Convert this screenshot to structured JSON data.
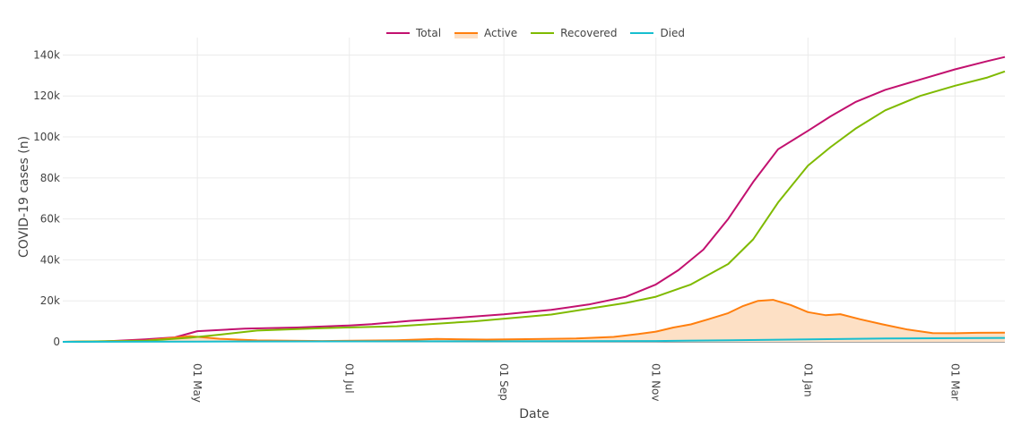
{
  "chart_data": {
    "type": "line",
    "xlabel": "Date",
    "ylabel": "COVID-19 cases (n)",
    "x_range": [
      "2020-03-08",
      "2021-03-21"
    ],
    "ylim": [
      0,
      145000
    ],
    "y_ticks": [
      0,
      20000,
      40000,
      60000,
      80000,
      100000,
      120000,
      140000
    ],
    "y_tick_labels": [
      "0",
      "20k",
      "40k",
      "60k",
      "80k",
      "100k",
      "120k",
      "140k"
    ],
    "x_ticks": [
      "2020-05-01",
      "2020-07-01",
      "2020-09-01",
      "2020-11-01",
      "2021-01-01",
      "2021-03-01"
    ],
    "x_tick_labels": [
      "01 May",
      "01 Jul",
      "01 Sep",
      "01 Nov",
      "01 Jan",
      "01 Mar"
    ],
    "grid": true,
    "legend_position": "top-center",
    "series": [
      {
        "name": "Total",
        "color": "#c2116f",
        "fill": false,
        "points": [
          [
            "2020-03-08",
            0
          ],
          [
            "2020-03-25",
            200
          ],
          [
            "2020-04-10",
            1200
          ],
          [
            "2020-04-22",
            2200
          ],
          [
            "2020-05-01",
            5200
          ],
          [
            "2020-05-20",
            6400
          ],
          [
            "2020-06-10",
            7000
          ],
          [
            "2020-07-01",
            8000
          ],
          [
            "2020-07-10",
            8600
          ],
          [
            "2020-07-25",
            10200
          ],
          [
            "2020-08-10",
            11500
          ],
          [
            "2020-09-01",
            13400
          ],
          [
            "2020-09-20",
            15600
          ],
          [
            "2020-10-05",
            18200
          ],
          [
            "2020-10-20",
            22000
          ],
          [
            "2020-11-01",
            28000
          ],
          [
            "2020-11-10",
            35000
          ],
          [
            "2020-11-20",
            45000
          ],
          [
            "2020-11-30",
            60000
          ],
          [
            "2020-12-10",
            78000
          ],
          [
            "2020-12-20",
            94000
          ],
          [
            "2021-01-01",
            103000
          ],
          [
            "2021-01-10",
            110000
          ],
          [
            "2021-01-20",
            117000
          ],
          [
            "2021-02-01",
            123000
          ],
          [
            "2021-02-15",
            128000
          ],
          [
            "2021-03-01",
            133000
          ],
          [
            "2021-03-14",
            137000
          ],
          [
            "2021-03-21",
            139000
          ]
        ]
      },
      {
        "name": "Active",
        "color": "#ff7f0e",
        "fill": true,
        "fill_color": "#fde0c5",
        "points": [
          [
            "2020-03-08",
            0
          ],
          [
            "2020-04-10",
            600
          ],
          [
            "2020-04-28",
            2800
          ],
          [
            "2020-05-10",
            1500
          ],
          [
            "2020-05-25",
            700
          ],
          [
            "2020-06-20",
            400
          ],
          [
            "2020-07-20",
            800
          ],
          [
            "2020-08-05",
            1400
          ],
          [
            "2020-08-25",
            1100
          ],
          [
            "2020-09-10",
            1300
          ],
          [
            "2020-09-30",
            1600
          ],
          [
            "2020-10-15",
            2400
          ],
          [
            "2020-10-25",
            3800
          ],
          [
            "2020-11-01",
            5000
          ],
          [
            "2020-11-08",
            7000
          ],
          [
            "2020-11-15",
            8500
          ],
          [
            "2020-11-22",
            11000
          ],
          [
            "2020-11-30",
            14000
          ],
          [
            "2020-12-06",
            17500
          ],
          [
            "2020-12-12",
            20000
          ],
          [
            "2020-12-18",
            20500
          ],
          [
            "2020-12-25",
            18000
          ],
          [
            "2021-01-01",
            14500
          ],
          [
            "2021-01-08",
            13000
          ],
          [
            "2021-01-14",
            13500
          ],
          [
            "2021-01-22",
            11000
          ],
          [
            "2021-01-31",
            8500
          ],
          [
            "2021-02-10",
            6000
          ],
          [
            "2021-02-20",
            4300
          ],
          [
            "2021-03-01",
            4200
          ],
          [
            "2021-03-10",
            4400
          ],
          [
            "2021-03-21",
            4500
          ]
        ]
      },
      {
        "name": "Recovered",
        "color": "#7fba00",
        "fill": false,
        "points": [
          [
            "2020-03-08",
            0
          ],
          [
            "2020-04-10",
            500
          ],
          [
            "2020-04-28",
            2000
          ],
          [
            "2020-05-10",
            3500
          ],
          [
            "2020-05-25",
            5500
          ],
          [
            "2020-06-20",
            6700
          ],
          [
            "2020-07-20",
            7600
          ],
          [
            "2020-08-20",
            10000
          ],
          [
            "2020-09-20",
            13300
          ],
          [
            "2020-10-20",
            19000
          ],
          [
            "2020-11-01",
            22000
          ],
          [
            "2020-11-15",
            28000
          ],
          [
            "2020-11-30",
            38000
          ],
          [
            "2020-12-10",
            50000
          ],
          [
            "2020-12-20",
            68000
          ],
          [
            "2021-01-01",
            86000
          ],
          [
            "2021-01-10",
            95000
          ],
          [
            "2021-01-20",
            104000
          ],
          [
            "2021-02-01",
            113000
          ],
          [
            "2021-02-15",
            120000
          ],
          [
            "2021-03-01",
            125000
          ],
          [
            "2021-03-14",
            129000
          ],
          [
            "2021-03-21",
            132000
          ]
        ]
      },
      {
        "name": "Died",
        "color": "#17becf",
        "fill": false,
        "points": [
          [
            "2020-03-08",
            0
          ],
          [
            "2020-05-01",
            150
          ],
          [
            "2020-07-01",
            200
          ],
          [
            "2020-09-01",
            280
          ],
          [
            "2020-11-01",
            400
          ],
          [
            "2020-12-01",
            800
          ],
          [
            "2021-01-01",
            1200
          ],
          [
            "2021-02-01",
            1600
          ],
          [
            "2021-03-01",
            1800
          ],
          [
            "2021-03-21",
            1900
          ]
        ]
      }
    ]
  }
}
